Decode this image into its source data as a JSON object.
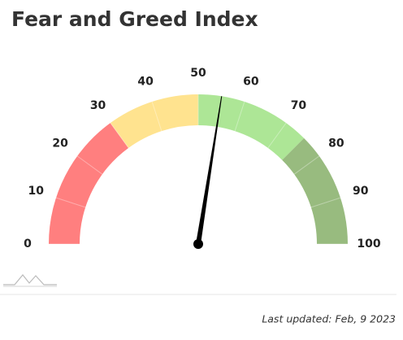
{
  "chart_data": {
    "type": "gauge",
    "title": "Fear and Greed Index",
    "value": 55,
    "range": [
      0,
      100
    ],
    "ticks": [
      0,
      10,
      20,
      30,
      40,
      50,
      60,
      70,
      80,
      90,
      100
    ],
    "bands": [
      {
        "from": 0,
        "to": 30,
        "color": "#ff7f7f"
      },
      {
        "from": 30,
        "to": 50,
        "color": "#ffe38f"
      },
      {
        "from": 50,
        "to": 75,
        "color": "#ade696"
      },
      {
        "from": 75,
        "to": 100,
        "color": "#98bb7f"
      }
    ],
    "needle_color": "#000000",
    "footer": "Last updated: Feb, 9 2023"
  }
}
